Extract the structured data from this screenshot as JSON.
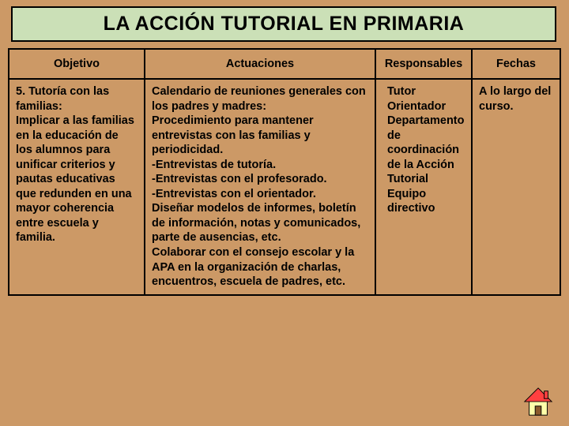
{
  "title": "LA ACCIÓN TUTORIAL EN  PRIMARIA",
  "table": {
    "headers": [
      "Objetivo",
      "Actuaciones",
      "Responsables",
      "Fechas"
    ],
    "row": {
      "objetivo": "5. Tutoría con las familias:\nImplicar a las familias en la educación de los alumnos para unificar criterios y pautas educativas que redunden en una mayor coherencia entre escuela y familia.",
      "actuaciones": "Calendario de reuniones generales con los padres y madres:\nProcedimiento para mantener entrevistas con las familias y periodicidad.\n-Entrevistas de tutoría.\n-Entrevistas con el profesorado.\n-Entrevistas con el orientador.\nDiseñar modelos de informes, boletín de información, notas y comunicados, parte de ausencias, etc.\nColaborar con el consejo escolar y la APA en la organización de charlas, encuentros, escuela de padres, etc.",
      "responsables": "Tutor\nOrientador\nDepartamento de coordinación de la Acción Tutorial\nEquipo directivo",
      "fechas": "A lo largo del curso."
    }
  },
  "colors": {
    "background": "#cc9966",
    "title_bg": "#cbe0b7",
    "border": "#000000",
    "text": "#000000",
    "icon_roof": "#ff0000",
    "icon_wall": "#ffffaa",
    "icon_door": "#8b4513"
  }
}
